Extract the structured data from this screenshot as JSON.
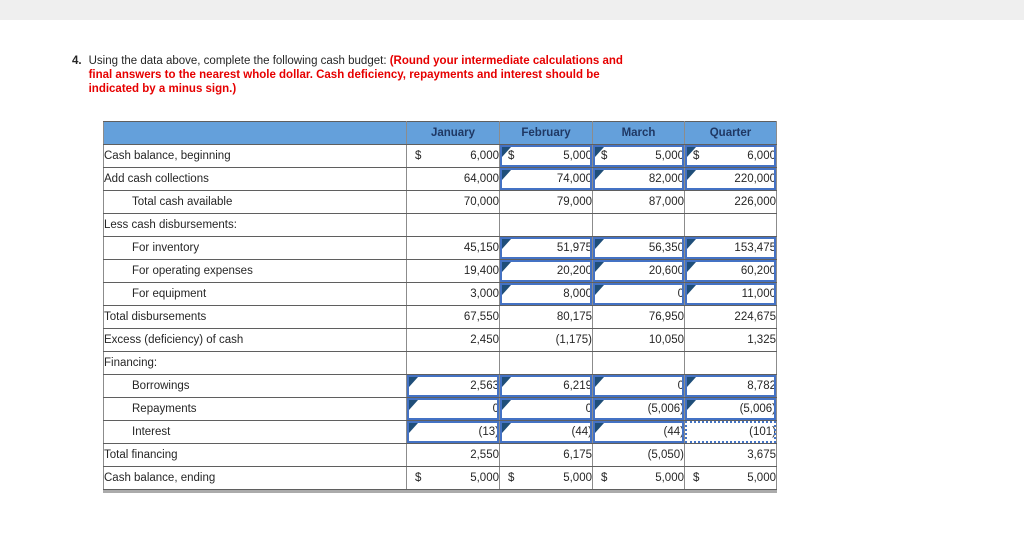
{
  "page": {
    "top_bar_color": "#efefef"
  },
  "question": {
    "number": "4.",
    "intro": "Using the data above, complete the following cash budget: ",
    "instruction_red": "(Round your intermediate calculations and final answers to the nearest whole dollar. Cash deficiency, repayments and interest should be indicated by a minus sign.)"
  },
  "table": {
    "columns": [
      "January",
      "February",
      "March",
      "Quarter"
    ],
    "colors": {
      "header_bg": "#64a0db",
      "header_text": "#1f3864",
      "input_border": "#4472c4",
      "selected_border": "#4374c6",
      "answer_marker": "#1f4e79",
      "grid_line": "#8c8c8c"
    },
    "rows": [
      {
        "label": "Cash balance, beginning",
        "indent": false,
        "cells": [
          {
            "prefix": "$",
            "value": "6,000",
            "style": "plain"
          },
          {
            "prefix": "$",
            "value": "5,000",
            "style": "answer"
          },
          {
            "prefix": "$",
            "value": "5,000",
            "style": "answer"
          },
          {
            "prefix": "$",
            "value": "6,000",
            "style": "answer"
          }
        ]
      },
      {
        "label": "Add cash collections",
        "indent": false,
        "cells": [
          {
            "value": "64,000",
            "style": "plain"
          },
          {
            "value": "74,000",
            "style": "answer"
          },
          {
            "value": "82,000",
            "style": "answer"
          },
          {
            "value": "220,000",
            "style": "answer"
          }
        ]
      },
      {
        "label": "Total cash available",
        "indent": true,
        "cells": [
          {
            "value": "70,000",
            "style": "plain"
          },
          {
            "value": "79,000",
            "style": "plain"
          },
          {
            "value": "87,000",
            "style": "plain"
          },
          {
            "value": "226,000",
            "style": "plain"
          }
        ]
      },
      {
        "label": "Less cash disbursements:",
        "indent": false,
        "cells": [
          {
            "value": "",
            "style": "plain"
          },
          {
            "value": "",
            "style": "plain"
          },
          {
            "value": "",
            "style": "plain"
          },
          {
            "value": "",
            "style": "plain"
          }
        ]
      },
      {
        "label": "For inventory",
        "indent": true,
        "cells": [
          {
            "value": "45,150",
            "style": "plain"
          },
          {
            "value": "51,975",
            "style": "answer"
          },
          {
            "value": "56,350",
            "style": "answer"
          },
          {
            "value": "153,475",
            "style": "answer"
          }
        ]
      },
      {
        "label": "For operating expenses",
        "indent": true,
        "cells": [
          {
            "value": "19,400",
            "style": "plain"
          },
          {
            "value": "20,200",
            "style": "answer"
          },
          {
            "value": "20,600",
            "style": "answer"
          },
          {
            "value": "60,200",
            "style": "answer"
          }
        ]
      },
      {
        "label": "For equipment",
        "indent": true,
        "cells": [
          {
            "value": "3,000",
            "style": "plain"
          },
          {
            "value": "8,000",
            "style": "answer"
          },
          {
            "value": "0",
            "style": "answer"
          },
          {
            "value": "11,000",
            "style": "answer"
          }
        ]
      },
      {
        "label": "Total disbursements",
        "indent": false,
        "cells": [
          {
            "value": "67,550",
            "style": "plain"
          },
          {
            "value": "80,175",
            "style": "plain"
          },
          {
            "value": "76,950",
            "style": "plain"
          },
          {
            "value": "224,675",
            "style": "plain"
          }
        ]
      },
      {
        "label": "Excess (deficiency) of cash",
        "indent": false,
        "cells": [
          {
            "value": "2,450",
            "style": "plain"
          },
          {
            "value": "(1,175)",
            "style": "plain"
          },
          {
            "value": "10,050",
            "style": "plain"
          },
          {
            "value": "1,325",
            "style": "plain"
          }
        ]
      },
      {
        "label": "Financing:",
        "indent": false,
        "cells": [
          {
            "value": "",
            "style": "plain"
          },
          {
            "value": "",
            "style": "plain"
          },
          {
            "value": "",
            "style": "plain"
          },
          {
            "value": "",
            "style": "plain"
          }
        ]
      },
      {
        "label": "Borrowings",
        "indent": true,
        "cells": [
          {
            "value": "2,563",
            "style": "answer"
          },
          {
            "value": "6,219",
            "style": "answer"
          },
          {
            "value": "0",
            "style": "answer"
          },
          {
            "value": "8,782",
            "style": "answer"
          }
        ]
      },
      {
        "label": "Repayments",
        "indent": true,
        "cells": [
          {
            "value": "0",
            "style": "answer"
          },
          {
            "value": "0",
            "style": "answer"
          },
          {
            "value": "(5,006)",
            "style": "answer"
          },
          {
            "value": "(5,006)",
            "style": "answer"
          }
        ]
      },
      {
        "label": "Interest",
        "indent": true,
        "cells": [
          {
            "value": "(13)",
            "style": "answer"
          },
          {
            "value": "(44)",
            "style": "answer"
          },
          {
            "value": "(44)",
            "style": "answer"
          },
          {
            "value": "(101)",
            "style": "selected"
          }
        ]
      },
      {
        "label": "Total financing",
        "indent": false,
        "cells": [
          {
            "value": "2,550",
            "style": "plain"
          },
          {
            "value": "6,175",
            "style": "plain"
          },
          {
            "value": "(5,050)",
            "style": "plain"
          },
          {
            "value": "3,675",
            "style": "plain"
          }
        ]
      },
      {
        "label": "Cash balance, ending",
        "indent": false,
        "cells": [
          {
            "prefix": "$",
            "value": "5,000",
            "style": "plain"
          },
          {
            "prefix": "$",
            "value": "5,000",
            "style": "plain"
          },
          {
            "prefix": "$",
            "value": "5,000",
            "style": "plain"
          },
          {
            "prefix": "$",
            "value": "5,000",
            "style": "plain"
          }
        ]
      }
    ]
  }
}
